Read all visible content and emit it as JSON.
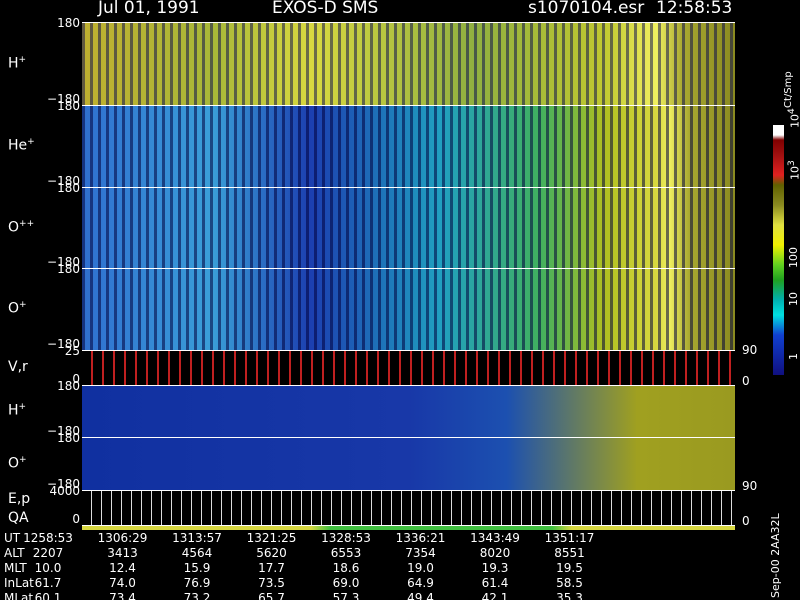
{
  "header": {
    "date": "Jul 01, 1991",
    "instrument": "EXOS-D SMS",
    "file": "s1070104.esr",
    "time": "12:58:53"
  },
  "panels": [
    {
      "label": "H",
      "sup": "+",
      "left_ticks": [
        "180",
        "−180"
      ],
      "right_ticks": []
    },
    {
      "label": "He",
      "sup": "+",
      "left_ticks": [
        "180",
        "−180"
      ],
      "right_ticks": []
    },
    {
      "label": "O",
      "sup": "++",
      "left_ticks": [
        "180",
        "−180"
      ],
      "right_ticks": []
    },
    {
      "label": "O",
      "sup": "+",
      "left_ticks": [
        "180",
        "−180"
      ],
      "right_ticks": []
    },
    {
      "label": "V,r",
      "left_ticks": [
        "25",
        "0"
      ],
      "right_ticks": [
        "90",
        "0"
      ]
    },
    {
      "label": "H",
      "sup": "+",
      "left_ticks": [
        "180",
        "−180"
      ],
      "right_ticks": []
    },
    {
      "label": "O",
      "sup": "+",
      "left_ticks": [
        "180",
        "−180"
      ],
      "right_ticks": [
        "90"
      ]
    },
    {
      "label": "E,p",
      "label2": "QA",
      "left_ticks": [
        "4000",
        "0"
      ],
      "right_ticks": [
        "0"
      ]
    }
  ],
  "colorbar": {
    "title": "Ct/Smp",
    "labels": [
      {
        "base": "10",
        "exp": "4"
      },
      {
        "base": "10",
        "exp": "3"
      },
      {
        "base": "100"
      },
      {
        "base": "10"
      },
      {
        "base": "1"
      }
    ]
  },
  "ephemeris": {
    "rows": [
      {
        "name": "UT",
        "values": [
          "1258:53",
          "1306:29",
          "1313:57",
          "1321:25",
          "1328:53",
          "1336:21",
          "1343:49",
          "1351:17"
        ]
      },
      {
        "name": "ALT",
        "values": [
          "2207",
          "3413",
          "4564",
          "5620",
          "6553",
          "7354",
          "8020",
          "8551"
        ]
      },
      {
        "name": "MLT",
        "values": [
          "10.0",
          "12.4",
          "15.9",
          "17.7",
          "18.6",
          "19.0",
          "19.3",
          "19.5"
        ]
      },
      {
        "name": "InLat",
        "values": [
          "61.7",
          "74.0",
          "76.9",
          "73.5",
          "69.0",
          "64.9",
          "61.4",
          "58.5"
        ]
      },
      {
        "name": "MLat",
        "values": [
          "60.1",
          "73.4",
          "73.2",
          "65.7",
          "57.3",
          "49.4",
          "42.1",
          "35.3"
        ]
      }
    ]
  },
  "footer": "Sep-00 2AA32L"
}
